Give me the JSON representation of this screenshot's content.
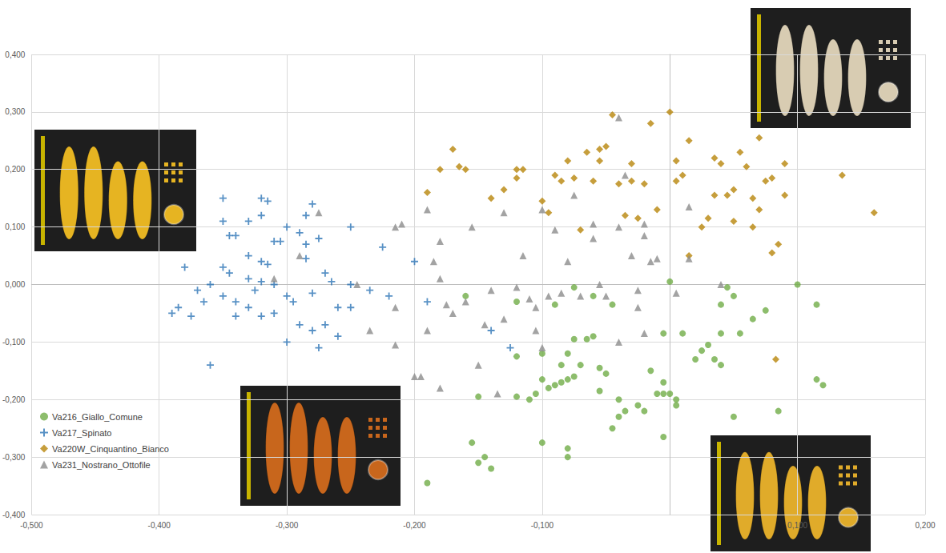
{
  "chart_data": {
    "type": "scatter",
    "grid": true,
    "legend": "bottom-left",
    "xlim": [
      -0.5,
      0.2
    ],
    "xticks": [
      {
        "value": -0.5,
        "label": "-0,500"
      },
      {
        "value": -0.4,
        "label": "-0,400"
      },
      {
        "value": -0.3,
        "label": "-0,300"
      },
      {
        "value": -0.2,
        "label": "-0,200"
      },
      {
        "value": -0.1,
        "label": "-0,100"
      },
      {
        "value": 0.1,
        "label": "0,100"
      },
      {
        "value": 0.2,
        "label": "0,200"
      }
    ],
    "ylim": [
      -0.4,
      0.4
    ],
    "yticks": [
      {
        "value": -0.4,
        "label": "-0,400"
      },
      {
        "value": -0.3,
        "label": "-0,300"
      },
      {
        "value": -0.2,
        "label": "-0,200"
      },
      {
        "value": -0.1,
        "label": "-0,100"
      },
      {
        "value": 0,
        "label": "0,000"
      },
      {
        "value": 0.1,
        "label": "0,100"
      },
      {
        "value": 0.2,
        "label": "0,200"
      },
      {
        "value": 0.3,
        "label": "0,300"
      },
      {
        "value": 0.4,
        "label": "0,400"
      }
    ],
    "series": [
      {
        "name": "Va216_Giallo_Comune",
        "color": "#70ad47",
        "marker": "circle",
        "x": [
          -0.16,
          -0.12,
          -0.09,
          -0.075,
          -0.06,
          -0.045,
          0.0,
          0.045,
          0.05,
          0.04,
          0.1,
          0.115,
          0.075,
          0.065,
          0.055,
          0.04,
          0.01,
          -0.005,
          0.03,
          0.035,
          0.025,
          0.02,
          0.04,
          -0.015,
          -0.06,
          -0.065,
          -0.075,
          -0.08,
          -0.1,
          -0.12,
          -0.085,
          -0.07,
          -0.055,
          -0.05,
          -0.075,
          -0.085,
          -0.09,
          -0.095,
          -0.1,
          -0.105,
          -0.11,
          -0.12,
          -0.15,
          -0.055,
          -0.04,
          -0.025,
          -0.02,
          -0.005,
          -0.005,
          0.0,
          -0.01,
          0.005,
          0.005,
          -0.04,
          -0.045,
          -0.035,
          -0.005,
          0.05,
          0.085,
          0.115,
          0.12,
          -0.1,
          -0.08,
          -0.08,
          -0.155,
          -0.15,
          -0.145,
          -0.14,
          -0.19,
          -0.08
        ],
        "values": [
          -0.02,
          -0.03,
          -0.035,
          -0.005,
          -0.02,
          -0.035,
          0.005,
          -0.005,
          -0.02,
          -0.035,
          0.0,
          -0.035,
          -0.045,
          -0.06,
          -0.085,
          -0.085,
          -0.085,
          -0.085,
          -0.105,
          -0.13,
          -0.115,
          -0.13,
          -0.14,
          -0.15,
          -0.09,
          -0.095,
          -0.095,
          -0.12,
          -0.12,
          -0.125,
          -0.14,
          -0.14,
          -0.145,
          -0.155,
          -0.16,
          -0.17,
          -0.175,
          -0.18,
          -0.165,
          -0.19,
          -0.2,
          -0.195,
          -0.195,
          -0.185,
          -0.2,
          -0.21,
          -0.22,
          -0.17,
          -0.19,
          -0.19,
          -0.19,
          -0.2,
          -0.21,
          -0.23,
          -0.25,
          -0.22,
          -0.265,
          -0.23,
          -0.22,
          -0.165,
          -0.175,
          -0.275,
          -0.285,
          -0.3,
          -0.275,
          -0.31,
          -0.3,
          -0.32,
          -0.345,
          -0.165
        ]
      },
      {
        "name": "Va217_Spinato",
        "color": "#2e75b6",
        "marker": "plus",
        "x": [
          -0.35,
          -0.35,
          -0.33,
          -0.32,
          -0.315,
          -0.32,
          -0.28,
          -0.285,
          -0.3,
          -0.31,
          -0.305,
          -0.29,
          -0.285,
          -0.275,
          -0.345,
          -0.34,
          -0.33,
          -0.32,
          -0.315,
          -0.35,
          -0.38,
          -0.345,
          -0.33,
          -0.325,
          -0.32,
          -0.31,
          -0.36,
          -0.35,
          -0.37,
          -0.34,
          -0.33,
          -0.3,
          -0.295,
          -0.28,
          -0.285,
          -0.27,
          -0.265,
          -0.25,
          -0.26,
          -0.25,
          -0.25,
          -0.225,
          -0.235,
          -0.22,
          -0.39,
          -0.385,
          -0.375,
          -0.365,
          -0.34,
          -0.32,
          -0.31,
          -0.3,
          -0.29,
          -0.28,
          -0.27,
          -0.275,
          -0.26,
          -0.36,
          -0.2,
          -0.19,
          -0.14,
          -0.125
        ],
        "values": [
          0.15,
          0.11,
          0.11,
          0.15,
          0.145,
          0.12,
          0.14,
          0.12,
          0.1,
          0.075,
          0.075,
          0.09,
          0.07,
          0.08,
          0.085,
          0.085,
          0.05,
          0.04,
          0.035,
          0.03,
          0.03,
          0.02,
          0.01,
          -0.01,
          0.005,
          0.0,
          0.0,
          -0.02,
          -0.01,
          -0.03,
          -0.04,
          -0.02,
          -0.03,
          -0.015,
          0.045,
          0.02,
          0.005,
          0.0,
          -0.04,
          -0.04,
          0.1,
          0.065,
          -0.01,
          -0.02,
          -0.05,
          -0.04,
          -0.055,
          -0.03,
          -0.055,
          -0.055,
          -0.05,
          -0.1,
          -0.07,
          -0.08,
          -0.07,
          -0.11,
          -0.09,
          -0.14,
          0.04,
          -0.03,
          -0.08,
          -0.11
        ]
      },
      {
        "name": "Va220W_Cinquantino_Bianco",
        "color": "#b8860b",
        "marker": "diamond",
        "x": [
          -0.19,
          -0.18,
          -0.17,
          -0.165,
          -0.16,
          -0.14,
          -0.13,
          -0.12,
          -0.12,
          -0.115,
          -0.1,
          -0.095,
          -0.09,
          -0.085,
          -0.08,
          -0.075,
          -0.07,
          -0.065,
          -0.06,
          -0.055,
          -0.055,
          -0.05,
          -0.045,
          -0.04,
          -0.035,
          -0.03,
          -0.03,
          -0.025,
          -0.02,
          -0.015,
          -0.01,
          0.0,
          0.005,
          0.01,
          0.015,
          0.015,
          0.025,
          0.03,
          0.035,
          0.035,
          0.04,
          0.045,
          0.05,
          0.05,
          0.055,
          0.065,
          0.065,
          0.07,
          0.07,
          0.075,
          0.08,
          0.08,
          0.09,
          0.085,
          0.083,
          0.135,
          0.16,
          0.09,
          0.005,
          0.06
        ],
        "values": [
          0.16,
          0.2,
          0.235,
          0.205,
          0.2,
          0.15,
          0.165,
          0.185,
          0.2,
          0.2,
          0.145,
          0.125,
          0.19,
          0.18,
          0.215,
          0.185,
          0.095,
          0.23,
          0.18,
          0.215,
          0.235,
          0.24,
          0.295,
          0.175,
          0.12,
          0.18,
          0.21,
          0.115,
          0.175,
          0.28,
          0.13,
          0.3,
          0.215,
          0.19,
          0.25,
          0.05,
          0.1,
          0.115,
          0.22,
          0.155,
          0.21,
          0.155,
          0.165,
          0.11,
          0.23,
          0.15,
          0.1,
          0.255,
          0.13,
          0.18,
          0.185,
          0.055,
          0.21,
          0.07,
          -0.13,
          0.19,
          0.125,
          0.155,
          0.18,
          0.205
        ]
      },
      {
        "name": "Va231_Nostrano_Ottofile",
        "color": "#8c8c8c",
        "marker": "triangle",
        "x": [
          -0.275,
          -0.29,
          -0.31,
          -0.245,
          -0.235,
          -0.215,
          -0.21,
          -0.215,
          -0.215,
          -0.19,
          -0.185,
          -0.18,
          -0.18,
          -0.18,
          -0.2,
          -0.195,
          -0.19,
          -0.175,
          -0.17,
          -0.16,
          -0.155,
          -0.15,
          -0.145,
          -0.14,
          -0.13,
          -0.135,
          -0.13,
          -0.12,
          -0.115,
          -0.11,
          -0.105,
          -0.1,
          -0.105,
          -0.1,
          -0.095,
          -0.09,
          -0.085,
          -0.08,
          -0.075,
          -0.07,
          -0.06,
          -0.06,
          -0.055,
          -0.05,
          -0.04,
          -0.04,
          -0.035,
          -0.03,
          -0.025,
          -0.02,
          -0.02,
          -0.015,
          -0.01,
          -0.02,
          -0.04,
          -0.025,
          0.005,
          0.015,
          0.015,
          0.04
        ],
        "values": [
          0.125,
          0.05,
          0.01,
          0.0,
          -0.08,
          -0.04,
          0.105,
          0.1,
          -0.105,
          0.13,
          0.04,
          0.075,
          0.01,
          -0.18,
          -0.16,
          -0.16,
          -0.08,
          -0.035,
          -0.05,
          -0.03,
          0.1,
          -0.14,
          -0.07,
          -0.01,
          -0.06,
          -0.19,
          0.125,
          -0.005,
          0.05,
          -0.025,
          -0.08,
          0.13,
          -0.04,
          -0.11,
          -0.02,
          0.095,
          -0.015,
          0.04,
          0.155,
          -0.02,
          0.08,
          0.105,
          0.0,
          -0.02,
          0.1,
          0.29,
          0.19,
          0.05,
          -0.01,
          0.085,
          0.105,
          0.04,
          0.045,
          -0.085,
          -0.1,
          -0.04,
          -0.015,
          0.135,
          0.045,
          0.0
        ]
      }
    ]
  }
}
